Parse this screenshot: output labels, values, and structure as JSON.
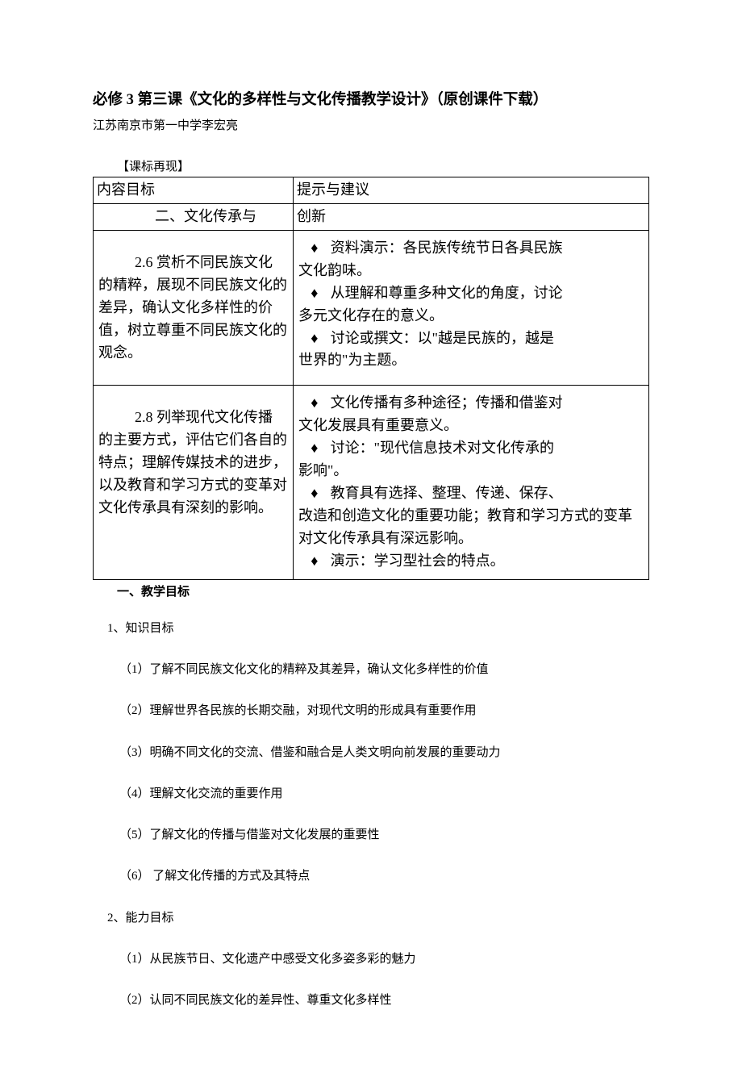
{
  "colors": {
    "text": "#000000",
    "background": "#ffffff",
    "border": "#000000"
  },
  "fonts": {
    "body_family": "SimSun",
    "title_size_pt": 14,
    "body_size_pt": 12,
    "table_size_pt": 13.5
  },
  "header": {
    "title": "必修 3 第三课《文化的多样性与文化传播教学设计》（原创课件下载）",
    "author": "江苏南京市第一中学李宏亮"
  },
  "standards": {
    "section_label": "【课标再现】",
    "col_header_left": "内容目标",
    "col_header_right": "提示与建议",
    "sub_header_left": "二、文化传承与",
    "sub_header_right": "创新",
    "rows": [
      {
        "left_first": "2.6 赏析不同民族文化",
        "left_rest": "的精粹，展现不同民族文化的差异，确认文化多样性的价值，树立尊重不同民族文化的观念。",
        "right": [
          {
            "lead": "资料演示：各民族传统节日各具民族",
            "cont": "文化韵味。"
          },
          {
            "lead": "从理解和尊重多种文化的角度，讨论",
            "cont": "多元文化存在的意义。"
          },
          {
            "lead": "讨论或撰文：以\"越是民族的，越是",
            "cont": "世界的\"为主题。"
          }
        ]
      },
      {
        "left_first": "2.8 列举现代文化传播",
        "left_rest": "的主要方式，评估它们各自的特点；理解传媒技术的进步，以及教育和学习方式的变革对文化传承具有深刻的影响。",
        "right": [
          {
            "lead": "文化传播有多种途径；传播和借鉴对",
            "cont": "文化发展具有重要意义。"
          },
          {
            "lead": "讨论：\"现代信息技术对文化传承的",
            "cont": "影响\"。"
          },
          {
            "lead": "教育具有选择、整理、传递、保存、",
            "cont": "改造和创造文化的重要功能；教育和学习方式的变革对文化传承具有深远影响。"
          },
          {
            "lead": "演示：学习型社会的特点。",
            "cont": ""
          }
        ]
      }
    ]
  },
  "objectives": {
    "heading": "一、教学目标",
    "groups": [
      {
        "label": "1、知识目标",
        "items": [
          "（1）了解不同民族文化文化的精粹及其差异，确认文化多样性的价值",
          "（2）理解世界各民族的长期交融，对现代文明的形成具有重要作用",
          "（3）明确不同文化的交流、借鉴和融合是人类文明向前发展的重要动力",
          "（4）理解文化交流的重要作用",
          "（5）了解文化的传播与借鉴对文化发展的重要性",
          "（6）   了解文化传播的方式及其特点"
        ]
      },
      {
        "label": "2、能力目标",
        "items": [
          "（1）从民族节日、文化遗产中感受文化多姿多彩的魅力",
          "（2）认同不同民族文化的差异性、尊重文化多样性"
        ]
      }
    ]
  }
}
